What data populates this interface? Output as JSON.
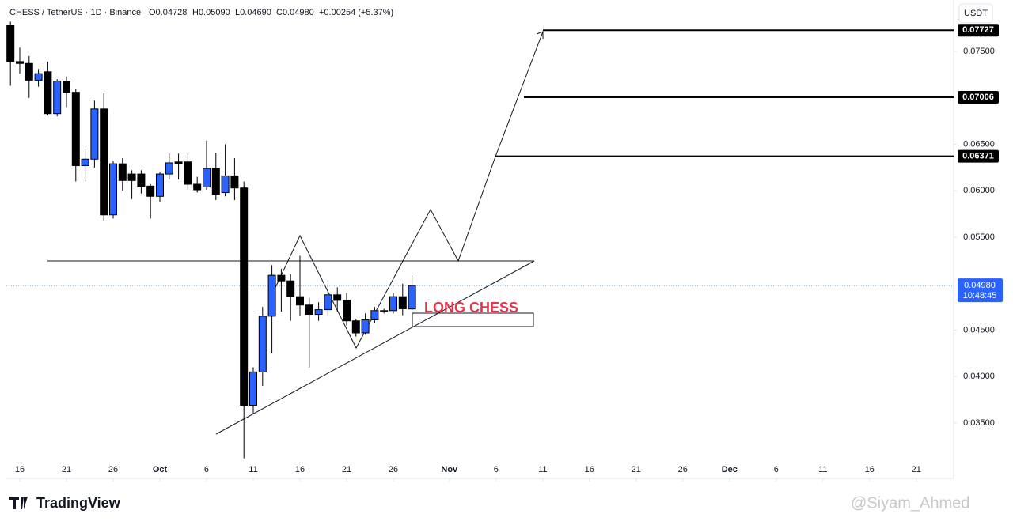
{
  "chart_data": {
    "type": "candlestick",
    "header": {
      "symbol": "CHESS / TetherUS · 1D · Binance",
      "open": "O0.04728",
      "high": "H0.05090",
      "low": "L0.04690",
      "close": "C0.04980",
      "change": "+0.00254 (+5.37%)"
    },
    "currency": "USDT",
    "annotation": "LONG CHESS",
    "brand": "TradingView",
    "watermark": "@Siyam_Ahmed",
    "up_color": "#2962ff",
    "down_color": "#000000",
    "x": [
      15,
      16,
      17,
      18,
      19,
      20,
      21,
      22,
      23,
      24,
      25,
      26,
      27,
      28,
      29,
      30,
      31,
      32,
      33,
      34,
      35,
      36,
      37,
      38,
      39,
      40,
      41,
      42,
      43,
      44,
      45,
      46,
      47,
      48,
      49,
      50,
      51,
      52,
      53,
      54,
      55,
      56,
      57,
      58
    ],
    "open": [
      0.0778,
      0.0739,
      0.0737,
      0.0719,
      0.0728,
      0.0683,
      0.0718,
      0.0706,
      0.0627,
      0.0634,
      0.0688,
      0.0574,
      0.0629,
      0.0618,
      0.0618,
      0.0605,
      0.0594,
      0.0618,
      0.0631,
      0.0631,
      0.0607,
      0.0604,
      0.0624,
      0.0598,
      0.0616,
      0.0603,
      0.0369,
      0.0405,
      0.0465,
      0.0509,
      0.0503,
      0.0486,
      0.0477,
      0.0467,
      0.0472,
      0.0488,
      0.0482,
      0.046,
      0.0447,
      0.0461,
      0.047,
      0.0471,
      0.0486,
      0.04728
    ],
    "high": [
      0.0782,
      0.0754,
      0.0745,
      0.0731,
      0.0739,
      0.072,
      0.0723,
      0.071,
      0.0645,
      0.0697,
      0.0705,
      0.0632,
      0.0635,
      0.0622,
      0.0622,
      0.0607,
      0.062,
      0.064,
      0.064,
      0.064,
      0.0615,
      0.0654,
      0.0641,
      0.065,
      0.0635,
      0.061,
      0.041,
      0.0475,
      0.052,
      0.0516,
      0.051,
      0.053,
      0.0485,
      0.048,
      0.05,
      0.0496,
      0.049,
      0.0462,
      0.0468,
      0.0475,
      0.0473,
      0.049,
      0.05,
      0.0509
    ],
    "low": [
      0.0713,
      0.0726,
      0.07,
      0.0712,
      0.0681,
      0.068,
      0.069,
      0.061,
      0.061,
      0.0625,
      0.0568,
      0.057,
      0.06,
      0.0591,
      0.0597,
      0.057,
      0.0588,
      0.0612,
      0.0612,
      0.0601,
      0.0598,
      0.0601,
      0.059,
      0.0594,
      0.059,
      0.0312,
      0.036,
      0.039,
      0.0425,
      0.047,
      0.046,
      0.0465,
      0.041,
      0.046,
      0.0465,
      0.047,
      0.0455,
      0.0443,
      0.0445,
      0.0458,
      0.0468,
      0.0468,
      0.0466,
      0.0469
    ],
    "close": [
      0.0739,
      0.0737,
      0.0719,
      0.0726,
      0.0683,
      0.0718,
      0.0706,
      0.0627,
      0.0634,
      0.0688,
      0.0574,
      0.0629,
      0.0611,
      0.0611,
      0.0604,
      0.0594,
      0.0618,
      0.063,
      0.0629,
      0.0607,
      0.0601,
      0.0624,
      0.0596,
      0.0616,
      0.0603,
      0.0369,
      0.0405,
      0.0465,
      0.0509,
      0.0503,
      0.0486,
      0.0477,
      0.0467,
      0.0472,
      0.0488,
      0.0482,
      0.046,
      0.0447,
      0.0461,
      0.0471,
      0.0471,
      0.0486,
      0.0473,
      0.0498
    ],
    "xlim": [
      14.56,
      116
    ],
    "xticks": [
      {
        "value": 16,
        "label": "16"
      },
      {
        "value": 21,
        "label": "21"
      },
      {
        "value": 26,
        "label": "26"
      },
      {
        "value": 31,
        "label": "Oct"
      },
      {
        "value": 36,
        "label": "6"
      },
      {
        "value": 41,
        "label": "11"
      },
      {
        "value": 46,
        "label": "16"
      },
      {
        "value": 51,
        "label": "21"
      },
      {
        "value": 56,
        "label": "26"
      },
      {
        "value": 62,
        "label": "Nov"
      },
      {
        "value": 67,
        "label": "6"
      },
      {
        "value": 72,
        "label": "11"
      },
      {
        "value": 77,
        "label": "16"
      },
      {
        "value": 82,
        "label": "21"
      },
      {
        "value": 87,
        "label": "26"
      },
      {
        "value": 92,
        "label": "Dec"
      },
      {
        "value": 97,
        "label": "6"
      },
      {
        "value": 102,
        "label": "11"
      },
      {
        "value": 107,
        "label": "16"
      },
      {
        "value": 112,
        "label": "21"
      }
    ],
    "ylim": [
      0.02904,
      0.08053
    ],
    "yticks": [
      {
        "value": 0.035,
        "label": "0.03500"
      },
      {
        "value": 0.04,
        "label": "0.04000"
      },
      {
        "value": 0.045,
        "label": "0.04500"
      },
      {
        "value": 0.055,
        "label": "0.05500"
      },
      {
        "value": 0.06,
        "label": "0.06000"
      },
      {
        "value": 0.065,
        "label": "0.06500"
      },
      {
        "value": 0.075,
        "label": "0.07500"
      }
    ],
    "levels": [
      {
        "value": 0.07727,
        "label": "0.07727"
      },
      {
        "value": 0.07006,
        "label": "0.07006"
      },
      {
        "value": 0.06371,
        "label": "0.06371"
      }
    ],
    "last_price": {
      "value": 0.0498,
      "label": "0.04980",
      "countdown": "10:48:45"
    }
  }
}
